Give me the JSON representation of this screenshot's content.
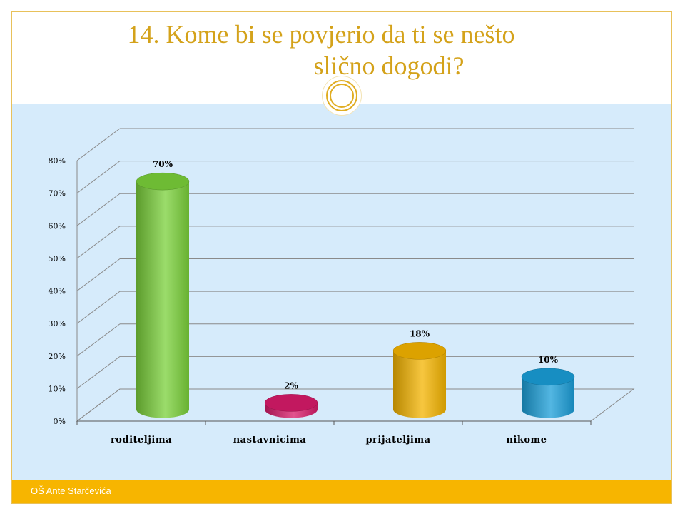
{
  "title": {
    "line1": "14. Kome bi se povjerio da ti se nešto",
    "line2": "slično dogodi?"
  },
  "footer": {
    "text": "OŠ Ante Starčevića"
  },
  "colors": {
    "title": "#d4a21a",
    "panel": "#d6ebfb",
    "footer": "#f7b500"
  },
  "chart_data": {
    "type": "bar",
    "title": "",
    "xlabel": "",
    "ylabel": "",
    "categories": [
      "roditeljima",
      "nastavnicima",
      "prijateljima",
      "nikome"
    ],
    "values": [
      70,
      2,
      18,
      10
    ],
    "data_labels": [
      "70%",
      "2%",
      "18%",
      "10%"
    ],
    "bar_colors": [
      "#7ad03a",
      "#d81b6a",
      "#f4b400",
      "#1a9ed8"
    ],
    "ylim": [
      0,
      80
    ],
    "yticks": [
      "0%",
      "10%",
      "20%",
      "30%",
      "40%",
      "50%",
      "60%",
      "70%",
      "80%"
    ],
    "grid": true,
    "legend": "none",
    "style": "3d-cylinder"
  }
}
